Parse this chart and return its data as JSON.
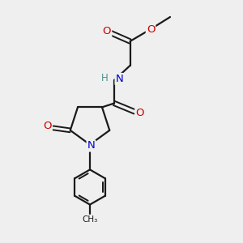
{
  "background_color": "#efefef",
  "atom_color_N": "#0000cc",
  "atom_color_O": "#cc0000",
  "atom_color_H": "#4a9090",
  "bond_color": "#1a1a1a",
  "bond_lw": 1.6,
  "font_size": 8.5,
  "fig_size": [
    3.0,
    3.0
  ],
  "dpi": 100,
  "xlim": [
    0,
    10
  ],
  "ylim": [
    0,
    10
  ]
}
